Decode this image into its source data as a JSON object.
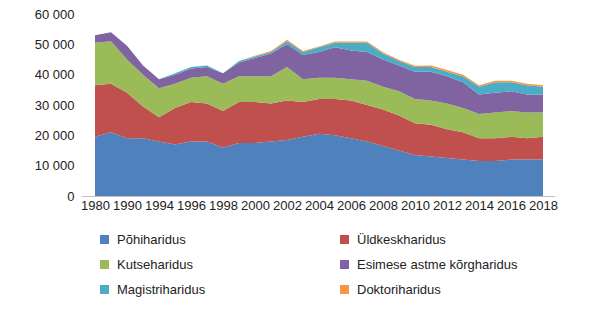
{
  "chart_data": {
    "type": "area",
    "stacked": true,
    "categories": [
      "1980",
      null,
      "1990",
      null,
      "1994",
      null,
      "1996",
      null,
      "1998",
      null,
      "2000",
      null,
      "2002",
      null,
      "2004",
      null,
      "2006",
      null,
      "2008",
      null,
      "2010",
      null,
      "2012",
      null,
      "2014",
      null,
      "2016",
      null,
      "2018"
    ],
    "ylim": [
      0,
      60000
    ],
    "yticks": [
      {
        "value": 0,
        "label": "0"
      },
      {
        "value": 10000,
        "label": "10 000"
      },
      {
        "value": 20000,
        "label": "20 000"
      },
      {
        "value": 30000,
        "label": "30 000"
      },
      {
        "value": 40000,
        "label": "40 000"
      },
      {
        "value": 50000,
        "label": "50 000"
      },
      {
        "value": 60000,
        "label": "60 000"
      }
    ],
    "grid": false,
    "legend": "bottom",
    "series": [
      {
        "name": "Põhiharidus",
        "color": "#4f81bd",
        "values": [
          19500,
          21000,
          19000,
          19000,
          18000,
          17000,
          18000,
          18000,
          16000,
          17500,
          17500,
          18000,
          18500,
          19500,
          20500,
          20000,
          19000,
          18000,
          16500,
          15000,
          13500,
          13000,
          12500,
          12000,
          11500,
          11500,
          12000,
          12000,
          12000
        ]
      },
      {
        "name": "Üldkeskharidus",
        "color": "#c0504d",
        "values": [
          17000,
          16000,
          15000,
          10500,
          8000,
          12000,
          13000,
          12500,
          12000,
          13500,
          13500,
          12500,
          13000,
          11500,
          11500,
          12000,
          12500,
          12000,
          12000,
          11500,
          10500,
          10500,
          9500,
          9000,
          7500,
          7500,
          7500,
          7000,
          7500
        ]
      },
      {
        "name": "Kutseharidus",
        "color": "#9bbb59",
        "values": [
          14000,
          14000,
          11000,
          10500,
          9500,
          8000,
          8000,
          9000,
          9000,
          8500,
          8500,
          9000,
          11000,
          7500,
          7000,
          7000,
          7000,
          8000,
          7500,
          8000,
          8000,
          8000,
          8500,
          8000,
          8000,
          8500,
          8500,
          8500,
          8000
        ]
      },
      {
        "name": "Esimese astme kõrgharidus",
        "color": "#8064a2",
        "values": [
          2500,
          3000,
          4500,
          3000,
          3000,
          3000,
          3000,
          3000,
          3500,
          4500,
          6000,
          7500,
          7500,
          8000,
          8500,
          10000,
          9500,
          9500,
          9000,
          8500,
          9000,
          9500,
          9000,
          8500,
          6500,
          6500,
          6500,
          6000,
          6000
        ]
      },
      {
        "name": "Magistriharidus",
        "color": "#4bacc6",
        "values": [
          0,
          0,
          0,
          0,
          0,
          500,
          500,
          500,
          0,
          500,
          500,
          500,
          1000,
          1000,
          1500,
          1500,
          2500,
          3000,
          2000,
          1500,
          1500,
          1500,
          1500,
          2000,
          2500,
          3500,
          3000,
          3000,
          2500
        ]
      },
      {
        "name": "Doktoriharidus",
        "color": "#f79646",
        "values": [
          0,
          0,
          0,
          0,
          0,
          0,
          0,
          0,
          0,
          0,
          200,
          300,
          500,
          300,
          300,
          400,
          400,
          400,
          400,
          400,
          400,
          500,
          500,
          500,
          500,
          500,
          500,
          500,
          500
        ]
      }
    ]
  }
}
